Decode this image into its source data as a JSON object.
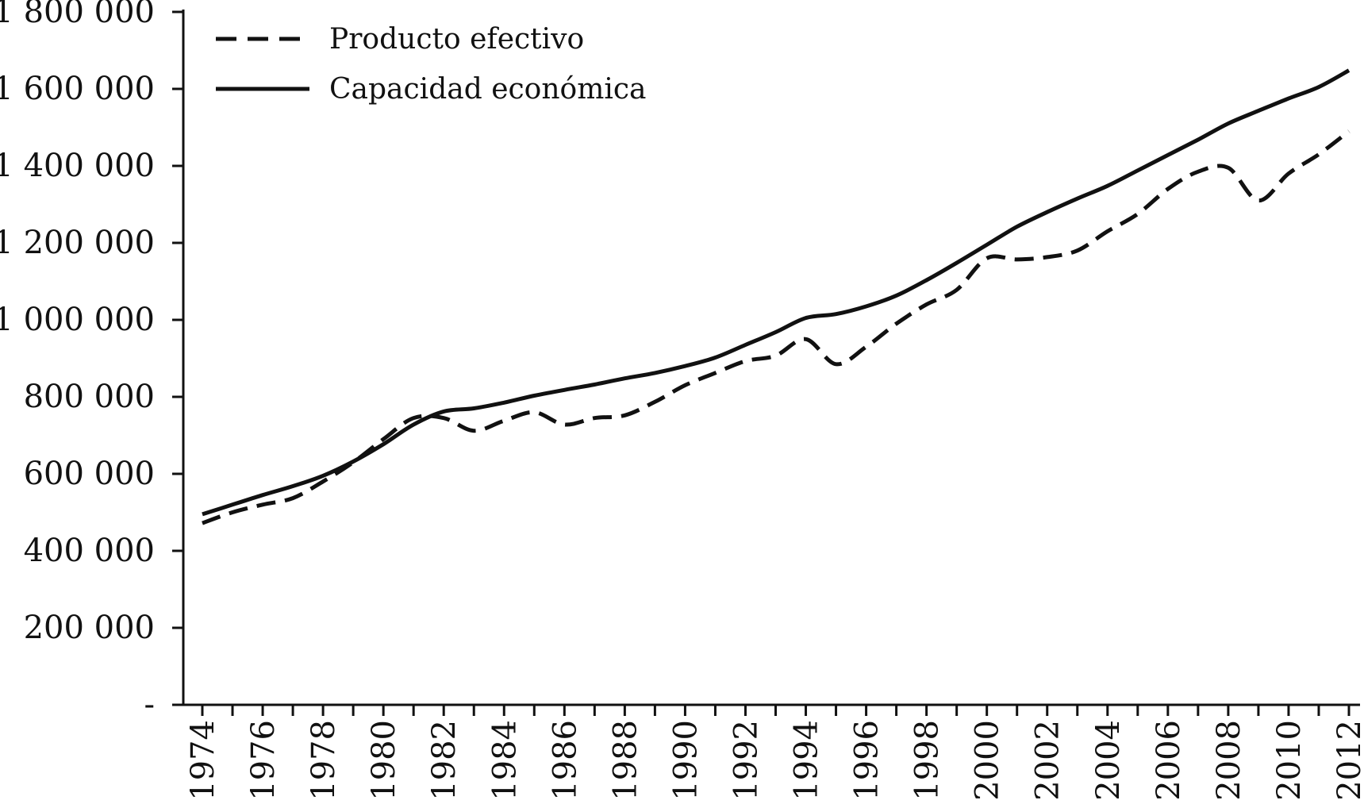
{
  "chart_data": {
    "type": "line",
    "title": "",
    "xlabel": "",
    "ylabel": "",
    "ylim": [
      0,
      1800000
    ],
    "grid": false,
    "legend_position": "top-left",
    "y_ticks": [
      {
        "value": 0,
        "label": "-"
      },
      {
        "value": 200000,
        "label": "200 000"
      },
      {
        "value": 400000,
        "label": "400 000"
      },
      {
        "value": 600000,
        "label": "600 000"
      },
      {
        "value": 800000,
        "label": "800 000"
      },
      {
        "value": 1000000,
        "label": "1 000 000"
      },
      {
        "value": 1200000,
        "label": "1 200 000"
      },
      {
        "value": 1400000,
        "label": "1 400 000"
      },
      {
        "value": 1600000,
        "label": "1 600 000"
      },
      {
        "value": 1800000,
        "label": "1 800 000"
      }
    ],
    "x": [
      1974,
      1975,
      1976,
      1977,
      1978,
      1979,
      1980,
      1981,
      1982,
      1983,
      1984,
      1985,
      1986,
      1987,
      1988,
      1989,
      1990,
      1991,
      1992,
      1993,
      1994,
      1995,
      1996,
      1997,
      1998,
      1999,
      2000,
      2001,
      2002,
      2003,
      2004,
      2005,
      2006,
      2007,
      2008,
      2009,
      2010,
      2011,
      2012
    ],
    "x_tick_labels": [
      "1974",
      "1976",
      "1978",
      "1980",
      "1982",
      "1984",
      "1986",
      "1988",
      "1990",
      "1992",
      "1994",
      "1996",
      "1998",
      "2000",
      "2002",
      "2004",
      "2006",
      "2008",
      "2010",
      "2012"
    ],
    "series": [
      {
        "name": "Producto efectivo",
        "style": "dashed",
        "color": "#111111",
        "values": [
          472000,
          500000,
          520000,
          537000,
          580000,
          630000,
          690000,
          745000,
          745000,
          712000,
          738000,
          760000,
          728000,
          745000,
          752000,
          787000,
          830000,
          862000,
          893000,
          907000,
          950000,
          885000,
          930000,
          990000,
          1040000,
          1078000,
          1160000,
          1157000,
          1163000,
          1180000,
          1230000,
          1275000,
          1340000,
          1385000,
          1395000,
          1310000,
          1380000,
          1430000,
          1490000
        ]
      },
      {
        "name": "Capacidad económica",
        "style": "solid",
        "color": "#111111",
        "values": [
          495000,
          520000,
          545000,
          568000,
          595000,
          632000,
          677000,
          728000,
          762000,
          770000,
          785000,
          803000,
          818000,
          832000,
          848000,
          862000,
          880000,
          902000,
          935000,
          968000,
          1005000,
          1015000,
          1035000,
          1063000,
          1103000,
          1148000,
          1195000,
          1242000,
          1280000,
          1315000,
          1348000,
          1388000,
          1428000,
          1468000,
          1510000,
          1543000,
          1575000,
          1605000,
          1648000
        ]
      }
    ]
  }
}
